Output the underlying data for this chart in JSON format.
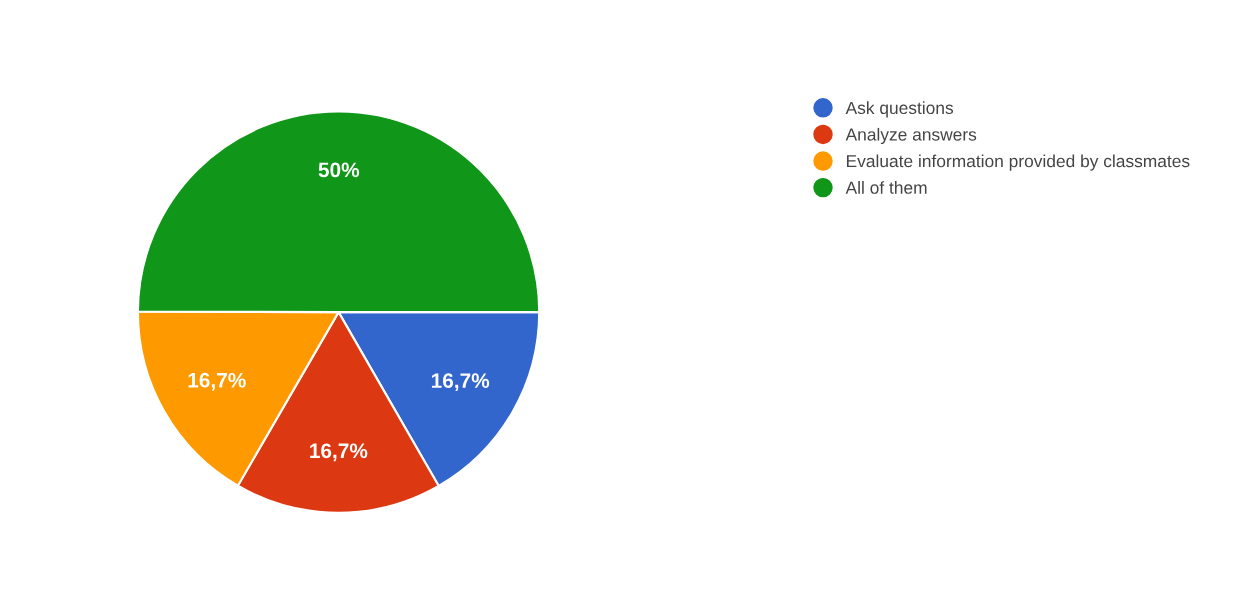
{
  "chart_data": {
    "type": "pie",
    "categories": [
      "Ask questions",
      "Analyze answers",
      "Evaluate information provided by classmates",
      "All of them"
    ],
    "values": [
      16.7,
      16.7,
      16.7,
      50
    ],
    "value_labels": [
      "16,7%",
      "16,7%",
      "16,7%",
      "50%"
    ],
    "colors": [
      "#3366cc",
      "#dc3912",
      "#ff9900",
      "#109618"
    ],
    "legend": "right"
  }
}
